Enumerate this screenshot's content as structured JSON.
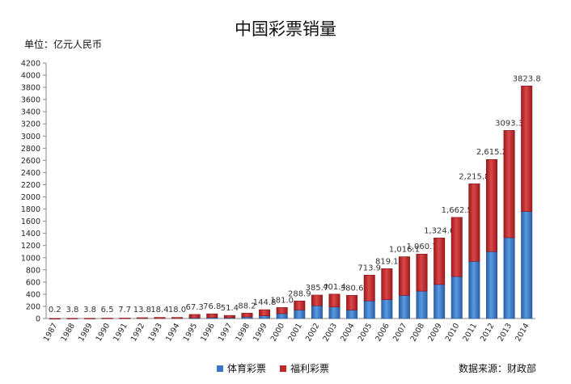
{
  "chart_data": {
    "type": "bar",
    "stacked": true,
    "title": "中国彩票销量",
    "unit_label": "单位：亿元人民币",
    "source_label": "数据来源：财政部",
    "categories": [
      "1987",
      "1988",
      "1989",
      "1990",
      "1991",
      "1992",
      "1993",
      "1994",
      "1995",
      "1996",
      "1997",
      "1998",
      "1999",
      "2000",
      "2001",
      "2002",
      "2003",
      "2004",
      "2005",
      "2006",
      "2007",
      "2008",
      "2009",
      "2010",
      "2011",
      "2012",
      "2013",
      "2014"
    ],
    "series": [
      {
        "name": "体育彩票",
        "color": "#3a78c6",
        "values": [
          0,
          0,
          0,
          0,
          0,
          0,
          0,
          0,
          10,
          15,
          12,
          25,
          45,
          80,
          140,
          210,
          190,
          140,
          290,
          310,
          380,
          450,
          560,
          690,
          940,
          1100,
          1330,
          1760
        ]
      },
      {
        "name": "福利彩票",
        "color": "#c0282a",
        "values": [
          0.2,
          3.8,
          3.8,
          6.5,
          7.7,
          13.8,
          18.4,
          18.0,
          57.3,
          61.8,
          39.4,
          63.2,
          99.8,
          101.0,
          148.9,
          175.7,
          211.4,
          240.6,
          423.9,
          509.1,
          636.1,
          610.1,
          764.6,
          972.5,
          1275.8,
          1515.2,
          1763.3,
          2063.8
        ]
      }
    ],
    "total_labels": [
      "0.2",
      "3.8",
      "3.8",
      "6.5",
      "7.7",
      "13.8",
      "18.4",
      "18.0",
      "67.3",
      "76.8",
      "51.4",
      "88.2",
      "144.8",
      "181.0",
      "288.9",
      "385.7",
      "401.4",
      "380.6",
      "713.9",
      "819.1",
      "1,016.1",
      "1,060.1",
      "1,324.6",
      "1,662.5",
      "2,215.8",
      "2,615.2",
      "3093.3",
      "3823.8"
    ],
    "ylim": [
      0,
      4200
    ],
    "yticks": [
      0,
      200,
      400,
      600,
      800,
      1000,
      1200,
      1400,
      1600,
      1800,
      2000,
      2200,
      2400,
      2600,
      2800,
      3000,
      3200,
      3400,
      3600,
      3800,
      4000,
      4200
    ],
    "grid": false,
    "legend_position": "bottom"
  }
}
